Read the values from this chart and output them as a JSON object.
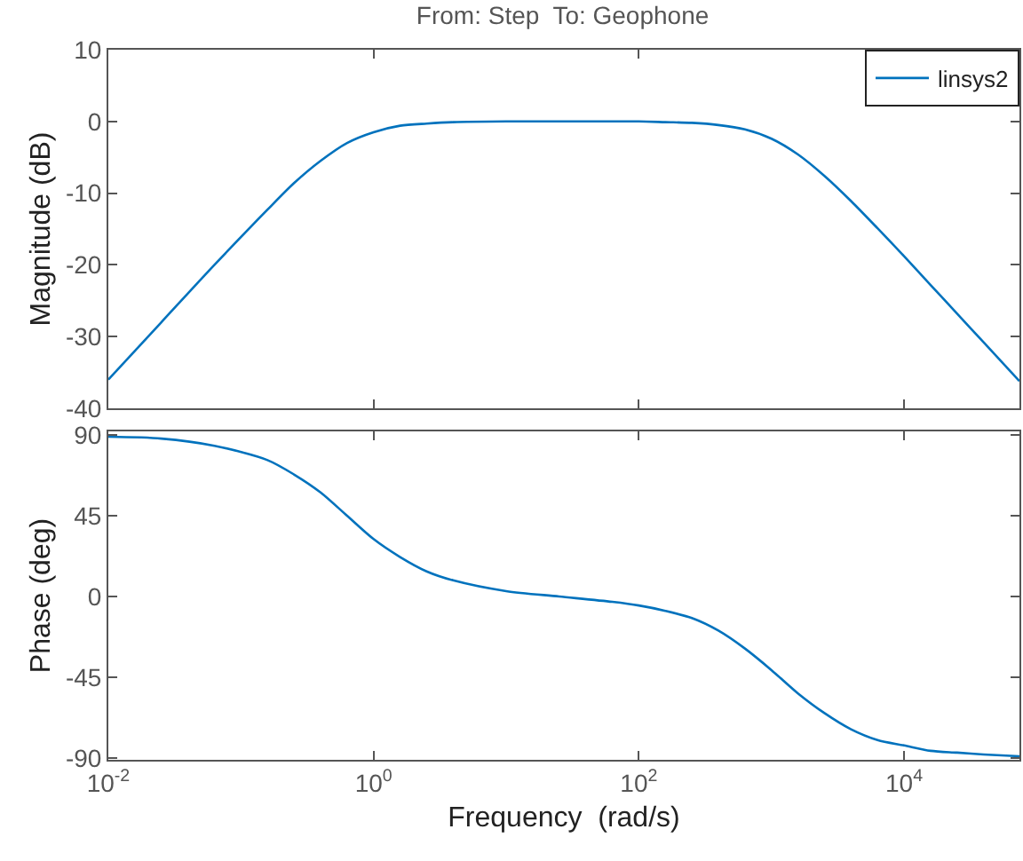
{
  "chart_data": [
    {
      "type": "line",
      "title": "From: Step  To: Geophone",
      "ylabel": "Magnitude (dB)",
      "log": "x",
      "grid": false,
      "legend": "top right",
      "tick_labels": "y",
      "x": [
        0.01,
        0.0251,
        0.0631,
        0.1585,
        0.2512,
        0.3981,
        0.631,
        1,
        1.585,
        2.512,
        3.981,
        10,
        25.1,
        63.1,
        100,
        158.5,
        251,
        398,
        631,
        1000,
        1585,
        2512,
        3981,
        6310,
        10000,
        15849,
        25119,
        39811,
        74131
      ],
      "series": [
        {
          "name": "linsys2",
          "color": "#0072bd",
          "values": [
            -36.0,
            -28.0,
            -20.0,
            -12.3,
            -8.6,
            -5.5,
            -3.0,
            -1.5,
            -0.6,
            -0.3,
            -0.1,
            0,
            0,
            0,
            0,
            -0.1,
            -0.2,
            -0.5,
            -1.1,
            -2.4,
            -4.6,
            -7.6,
            -11.1,
            -14.9,
            -18.8,
            -22.8,
            -26.8,
            -30.8,
            -36.2
          ]
        }
      ],
      "xlim": [
        0.01,
        74131
      ],
      "xticks": [
        {
          "value": 0.01,
          "label": null
        },
        {
          "value": 1,
          "label": null
        },
        {
          "value": 100,
          "label": null
        },
        {
          "value": 10000,
          "label": null
        }
      ],
      "ylim": [
        -40,
        10
      ],
      "yticks": [
        -40,
        -30,
        -20,
        -10,
        0,
        10
      ]
    },
    {
      "type": "line",
      "xlabel": "Frequency  (rad/s)",
      "ylabel": "Phase (deg)",
      "log": "x",
      "grid": false,
      "x": [
        0.01,
        0.0251,
        0.0631,
        0.1585,
        0.2512,
        0.3981,
        0.631,
        1,
        1.585,
        2.512,
        3.981,
        10,
        25.1,
        63.1,
        100,
        158.5,
        251,
        398,
        631,
        1000,
        1585,
        2512,
        3981,
        6310,
        10000,
        15849,
        25119,
        39811,
        74131
      ],
      "series": [
        {
          "color": "#0072bd",
          "values": [
            89,
            88,
            84,
            76,
            68,
            58,
            45,
            32,
            22,
            14,
            9,
            3,
            0,
            -3,
            -5,
            -8,
            -12,
            -19,
            -29,
            -41,
            -54,
            -65,
            -74,
            -80,
            -83,
            -86,
            -87,
            -88,
            -89
          ]
        }
      ],
      "xlim": [
        0.01,
        74131
      ],
      "xticks": [
        {
          "value": 0.01,
          "label": "10$^{-2}$"
        },
        {
          "value": 1,
          "label": "10$^{0}$"
        },
        {
          "value": 100,
          "label": "10$^{2}$"
        },
        {
          "value": 10000,
          "label": "10$^{4}$"
        }
      ],
      "ylim": [
        -91,
        92
      ],
      "yticks": [
        -90,
        -45,
        0,
        45,
        90
      ]
    }
  ]
}
